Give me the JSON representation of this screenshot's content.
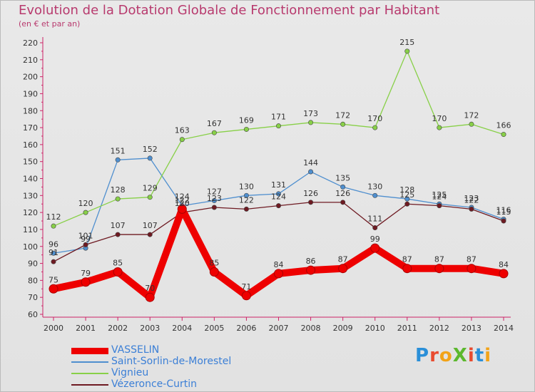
{
  "title": "Evolution de la Dotation Globale de Fonctionnement par Habitant",
  "subtitle": "(en € et par an)",
  "logo": {
    "text": "ProXiti",
    "letters": [
      "P",
      "r",
      "o",
      "X",
      "i",
      "t",
      "i"
    ],
    "colors": [
      "#2a8fd8",
      "#e94b2f",
      "#f2a318",
      "#5cb82e",
      "#e94b2f",
      "#2a8fd8",
      "#f2a318"
    ]
  },
  "chart_data": {
    "type": "line",
    "title": "Evolution de la Dotation Globale de Fonctionnement par Habitant",
    "subtitle": "(en € et par an)",
    "x": [
      "2000",
      "2001",
      "2002",
      "2003",
      "2004",
      "2005",
      "2006",
      "2007",
      "2008",
      "2009",
      "2010",
      "2011",
      "2012",
      "2013",
      "2014"
    ],
    "ylim": [
      60,
      220
    ],
    "yticks": [
      60,
      70,
      80,
      90,
      100,
      110,
      120,
      130,
      140,
      150,
      160,
      170,
      180,
      190,
      200,
      210,
      220
    ],
    "grid": false,
    "legend_position": "bottom-left",
    "series": [
      {
        "name": "VASSELIN",
        "color": "#ee0000",
        "values": [
          75,
          79,
          85,
          70,
          122,
          85,
          71,
          84,
          86,
          87,
          99,
          87,
          87,
          87,
          84
        ],
        "labels": [
          "75",
          "79",
          "85",
          "70",
          "122",
          "85",
          "71",
          "84",
          "86",
          "87",
          "99",
          "87",
          "87",
          "87",
          "84"
        ]
      },
      {
        "name": "Saint-Sorlin-de-Morestel",
        "color": "#4f8fcf",
        "values": [
          96,
          99,
          151,
          152,
          124,
          127,
          130,
          131,
          144,
          135,
          130,
          128,
          125,
          123,
          116
        ],
        "labels": [
          "96",
          "99",
          "151",
          "152",
          "124",
          "127",
          "130",
          "131",
          "144",
          "135",
          "130",
          "128",
          "125",
          "123",
          "116"
        ]
      },
      {
        "name": "Vignieu",
        "color": "#88d048",
        "values": [
          112,
          120,
          128,
          129,
          163,
          167,
          169,
          171,
          173,
          172,
          170,
          215,
          170,
          172,
          166
        ],
        "labels": [
          "112",
          "120",
          "128",
          "129",
          "163",
          "167",
          "169",
          "171",
          "173",
          "172",
          "170",
          "215",
          "170",
          "172",
          "166"
        ]
      },
      {
        "name": "Vézeronce-Curtin",
        "color": "#6e1a22",
        "values": [
          91,
          101,
          107,
          107,
          120,
          123,
          122,
          124,
          126,
          126,
          111,
          125,
          124,
          122,
          115
        ],
        "labels": [
          "91",
          "101",
          "107",
          "107",
          "120",
          "123",
          "122",
          "124",
          "126",
          "126",
          "111",
          "125",
          "124",
          "122",
          "115"
        ]
      }
    ]
  }
}
